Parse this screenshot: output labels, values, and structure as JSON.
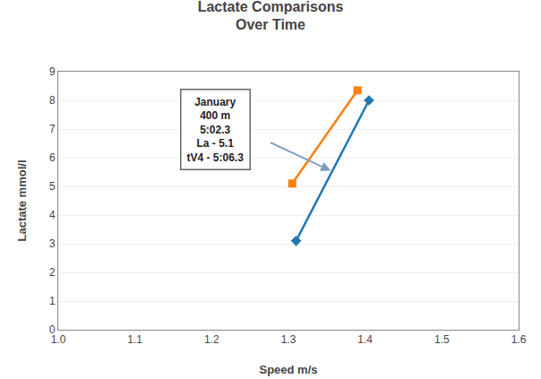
{
  "chart_data": {
    "type": "line",
    "title": "Lactate Comparisons\nOver Time",
    "x_label": "Speed m/s",
    "y_label": "Lactate mmol/l",
    "series": [
      {
        "x": [
          1.31,
          1.405
        ],
        "values": [
          3.1,
          8.0
        ],
        "marker": "diamond"
      },
      {
        "x": [
          1.305,
          1.39
        ],
        "values": [
          5.1,
          8.35
        ],
        "marker": "square"
      }
    ],
    "xlim": [
      1.0,
      1.6
    ],
    "ylim": [
      0,
      9
    ],
    "xticks": [
      {
        "value": 1.0,
        "label": "1.0"
      },
      1.1,
      1.2,
      1.3,
      1.4,
      1.5,
      1.6
    ],
    "yticks": [
      0,
      1,
      2,
      3,
      4,
      5,
      6,
      7,
      8,
      9
    ],
    "grid": "y",
    "annotations": [
      {
        "text": "January\n400 m\n5:02.3\nLa - 5.1\ntV4 - 5:06.3",
        "x": 1.205,
        "y": 7.0,
        "arrow_from": [
          1.275,
          6.55
        ],
        "arrow_to": [
          1.355,
          5.55
        ]
      }
    ]
  }
}
